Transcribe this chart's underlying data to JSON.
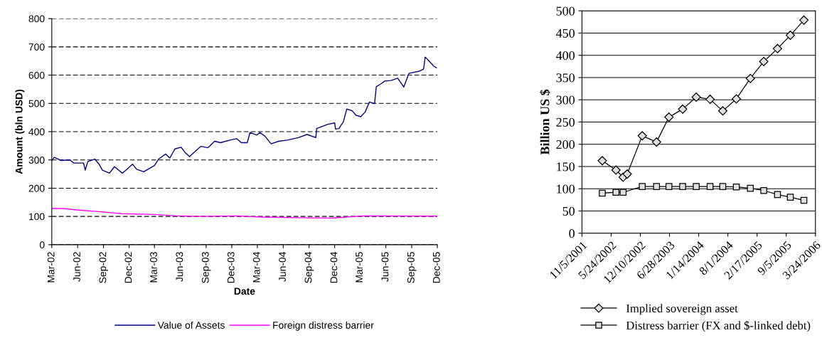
{
  "chart_data": [
    {
      "type": "line",
      "xlabel": "Date",
      "ylabel": "Amount (bln USD)",
      "xlim": [
        "2002-03",
        "2005-12"
      ],
      "ylim": [
        0,
        800
      ],
      "yticks": [
        0,
        100,
        200,
        300,
        400,
        500,
        600,
        700,
        800
      ],
      "xticks": [
        {
          "value": "2002-03",
          "label": "Mar-02"
        },
        {
          "value": "2002-06",
          "label": "Jun-02"
        },
        {
          "value": "2002-09",
          "label": "Sep-02"
        },
        {
          "value": "2002-12",
          "label": "Dec-02"
        },
        {
          "value": "2003-03",
          "label": "Mar-03"
        },
        {
          "value": "2003-06",
          "label": "Jun-03"
        },
        {
          "value": "2003-09",
          "label": "Sep-03"
        },
        {
          "value": "2003-12",
          "label": "Dec-03"
        },
        {
          "value": "2004-03",
          "label": "Mar-04"
        },
        {
          "value": "2004-06",
          "label": "Jun-04"
        },
        {
          "value": "2004-09",
          "label": "Sep-04"
        },
        {
          "value": "2004-12",
          "label": "Dec-04"
        },
        {
          "value": "2005-03",
          "label": "Mar-05"
        },
        {
          "value": "2005-06",
          "label": "Jun-05"
        },
        {
          "value": "2005-09",
          "label": "Sep-05"
        },
        {
          "value": "2005-12",
          "label": "Dec-05"
        }
      ],
      "grid": "y",
      "legend": "bottom",
      "marker": "none",
      "series": [
        {
          "name": "Value of Assets",
          "color": "#000080",
          "x": [
            "2002-03-01",
            "2002-03-10",
            "2002-04-04",
            "2002-05-04",
            "2002-05-19",
            "2002-06-22",
            "2002-06-28",
            "2002-07-07",
            "2002-08-01",
            "2002-08-16",
            "2002-08-28",
            "2002-09-22",
            "2002-10-10",
            "2002-11-07",
            "2002-11-28",
            "2002-12-13",
            "2002-12-28",
            "2003-01-22",
            "2003-03-01",
            "2003-03-16",
            "2003-04-10",
            "2003-04-25",
            "2003-05-13",
            "2003-06-04",
            "2003-06-19",
            "2003-07-04",
            "2003-07-28",
            "2003-08-13",
            "2003-09-07",
            "2003-10-01",
            "2003-10-22",
            "2003-11-25",
            "2003-12-19",
            "2004-01-04",
            "2004-01-25",
            "2004-02-04",
            "2004-02-28",
            "2004-03-10",
            "2004-03-28",
            "2004-04-19",
            "2004-05-16",
            "2004-06-16",
            "2004-07-25",
            "2004-08-25",
            "2004-09-25",
            "2004-09-28",
            "2004-11-07",
            "2004-12-01",
            "2004-12-04",
            "2004-12-16",
            "2005-01-01",
            "2005-01-13",
            "2005-02-01",
            "2005-02-15",
            "2005-03-04",
            "2005-03-19",
            "2005-04-04",
            "2005-04-22",
            "2005-04-28",
            "2005-05-13",
            "2005-05-28",
            "2005-06-19",
            "2005-07-13",
            "2005-08-04",
            "2005-08-22",
            "2005-09-28",
            "2005-10-13",
            "2005-10-19",
            "2005-11-07",
            "2005-11-19",
            "2005-11-28"
          ],
          "values": [
            298,
            309,
            298,
            300,
            289,
            289,
            264,
            294,
            303,
            285,
            264,
            253,
            276,
            253,
            271,
            285,
            267,
            258,
            280,
            303,
            321,
            307,
            339,
            345,
            325,
            312,
            334,
            348,
            343,
            366,
            361,
            370,
            375,
            361,
            361,
            397,
            388,
            397,
            384,
            357,
            366,
            370,
            379,
            390,
            379,
            411,
            426,
            431,
            409,
            411,
            435,
            480,
            474,
            458,
            453,
            469,
            505,
            499,
            559,
            568,
            579,
            581,
            589,
            558,
            606,
            614,
            621,
            664,
            644,
            631,
            626
          ]
        },
        {
          "name": "Foreign distress barrier",
          "color": "#ff00ff",
          "x": [
            "2002-03-01",
            "2002-04-10",
            "2002-05-28",
            "2002-08-16",
            "2002-11-04",
            "2003-03-01",
            "2003-05-19",
            "2003-08-07",
            "2003-12-19",
            "2004-03-13",
            "2004-08-19",
            "2004-11-22",
            "2005-03-10",
            "2005-12-01"
          ],
          "values": [
            128,
            128,
            123,
            117,
            110,
            107,
            102,
            100,
            102,
            98,
            95,
            94,
            102,
            101
          ]
        }
      ]
    },
    {
      "type": "line",
      "ylabel": "Billion US $",
      "xlim": [
        "2001-11-05",
        "2006-03-24"
      ],
      "ylim": [
        0,
        500
      ],
      "yticks": [
        0,
        50,
        100,
        150,
        200,
        250,
        300,
        350,
        400,
        450,
        500
      ],
      "xticks": [
        {
          "value": "2001-11-05",
          "label": "11/5/2001"
        },
        {
          "value": "2002-05-24",
          "label": "5/24/2002"
        },
        {
          "value": "2002-12-10",
          "label": "12/10/2002"
        },
        {
          "value": "2003-06-28",
          "label": "6/28/2003"
        },
        {
          "value": "2004-01-14",
          "label": "1/14/2004"
        },
        {
          "value": "2004-08-01",
          "label": "8/1/2004"
        },
        {
          "value": "2005-02-17",
          "label": "2/17/2005"
        },
        {
          "value": "2005-09-05",
          "label": "9/5/2005"
        },
        {
          "value": "2006-03-24",
          "label": "3/24/2006"
        }
      ],
      "grid": "y",
      "legend": "bottom",
      "series": [
        {
          "name": "Implied sovereign asset",
          "color": "#000000",
          "marker": "diamond",
          "x": [
            "2002-03-24",
            "2002-06-26",
            "2002-08-14",
            "2002-09-11",
            "2002-12-23",
            "2003-03-31",
            "2003-06-24",
            "2003-09-26",
            "2003-12-28",
            "2004-04-01",
            "2004-06-27",
            "2004-09-28",
            "2005-01-02",
            "2005-04-04",
            "2005-07-07",
            "2005-10-03",
            "2006-01-04"
          ],
          "values": [
            163,
            142,
            126,
            133,
            219,
            205,
            261,
            279,
            306,
            301,
            275,
            302,
            348,
            386,
            415,
            445,
            479
          ]
        },
        {
          "name": "Distress barrier (FX and $-linked debt)",
          "color": "#000000",
          "marker": "square",
          "x": [
            "2002-03-24",
            "2002-06-26",
            "2002-08-14",
            "2002-12-23",
            "2003-03-31",
            "2003-06-24",
            "2003-09-26",
            "2003-12-28",
            "2004-04-01",
            "2004-06-27",
            "2004-09-28",
            "2005-01-02",
            "2005-04-04",
            "2005-07-07",
            "2005-10-03",
            "2006-01-04"
          ],
          "values": [
            90,
            92,
            92,
            105,
            105,
            105,
            105,
            105,
            105,
            105,
            104,
            101,
            96,
            87,
            81,
            74
          ]
        }
      ]
    }
  ]
}
